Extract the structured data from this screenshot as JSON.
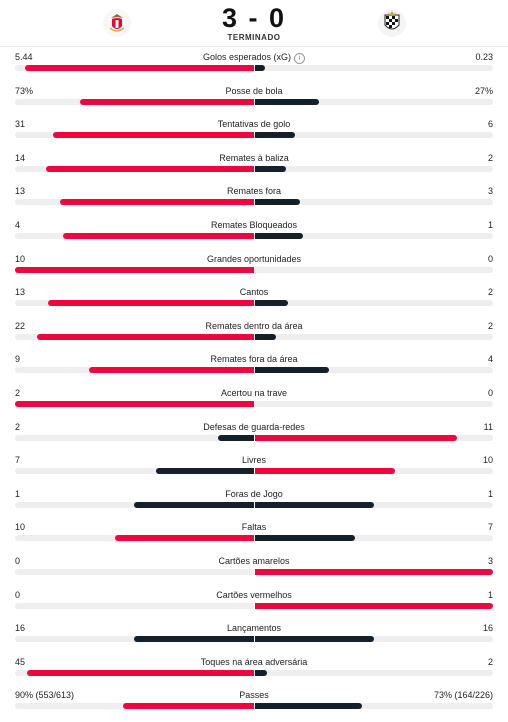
{
  "match": {
    "home_score": "3",
    "separator": "-",
    "away_score": "0",
    "status": "TERMINADO",
    "home_crest_icon": "benfica-crest-icon",
    "away_crest_icon": "boavista-crest-icon"
  },
  "colors": {
    "leader": "#f0063f",
    "trailer": "#15202b",
    "track": "#eeeef0"
  },
  "stats": [
    {
      "label": "Golos esperados (xG)",
      "home": "5.44",
      "away": "0.23",
      "home_ratio": 0.96,
      "away_ratio": 0.04,
      "leader": "home",
      "info": true
    },
    {
      "label": "Posse de bola",
      "home": "73%",
      "away": "27%",
      "home_ratio": 0.73,
      "away_ratio": 0.27,
      "leader": "home"
    },
    {
      "label": "Tentativas de golo",
      "home": "31",
      "away": "6",
      "home_ratio": 0.84,
      "away_ratio": 0.17,
      "leader": "home"
    },
    {
      "label": "Remates à baliza",
      "home": "14",
      "away": "2",
      "home_ratio": 0.87,
      "away_ratio": 0.13,
      "leader": "home"
    },
    {
      "label": "Remates fora",
      "home": "13",
      "away": "3",
      "home_ratio": 0.81,
      "away_ratio": 0.19,
      "leader": "home"
    },
    {
      "label": "Remates Bloqueados",
      "home": "4",
      "away": "1",
      "home_ratio": 0.8,
      "away_ratio": 0.2,
      "leader": "home"
    },
    {
      "label": "Grandes oportunidades",
      "home": "10",
      "away": "0",
      "home_ratio": 1.0,
      "away_ratio": 0.0,
      "leader": "home"
    },
    {
      "label": "Cantos",
      "home": "13",
      "away": "2",
      "home_ratio": 0.86,
      "away_ratio": 0.14,
      "leader": "home"
    },
    {
      "label": "Remates dentro da área",
      "home": "22",
      "away": "2",
      "home_ratio": 0.91,
      "away_ratio": 0.09,
      "leader": "home"
    },
    {
      "label": "Remates fora da área",
      "home": "9",
      "away": "4",
      "home_ratio": 0.69,
      "away_ratio": 0.31,
      "leader": "home"
    },
    {
      "label": "Acertou na trave",
      "home": "2",
      "away": "0",
      "home_ratio": 1.0,
      "away_ratio": 0.0,
      "leader": "home"
    },
    {
      "label": "Defesas de guarda-redes",
      "home": "2",
      "away": "11",
      "home_ratio": 0.15,
      "away_ratio": 0.85,
      "leader": "away"
    },
    {
      "label": "Livres",
      "home": "7",
      "away": "10",
      "home_ratio": 0.41,
      "away_ratio": 0.59,
      "leader": "away"
    },
    {
      "label": "Foras de Jogo",
      "home": "1",
      "away": "1",
      "home_ratio": 0.5,
      "away_ratio": 0.5,
      "leader": "none"
    },
    {
      "label": "Faltas",
      "home": "10",
      "away": "7",
      "home_ratio": 0.58,
      "away_ratio": 0.42,
      "leader": "home"
    },
    {
      "label": "Cartões amarelos",
      "home": "0",
      "away": "3",
      "home_ratio": 0.0,
      "away_ratio": 1.0,
      "leader": "away"
    },
    {
      "label": "Cartões vermelhos",
      "home": "0",
      "away": "1",
      "home_ratio": 0.0,
      "away_ratio": 1.0,
      "leader": "away"
    },
    {
      "label": "Lançamentos",
      "home": "16",
      "away": "16",
      "home_ratio": 0.5,
      "away_ratio": 0.5,
      "leader": "none"
    },
    {
      "label": "Toques na área adversária",
      "home": "45",
      "away": "2",
      "home_ratio": 0.95,
      "away_ratio": 0.05,
      "leader": "home"
    },
    {
      "label": "Passes",
      "home": "90% (553/613)",
      "away": "73% (164/226)",
      "home_ratio": 0.55,
      "away_ratio": 0.45,
      "leader": "home"
    }
  ]
}
